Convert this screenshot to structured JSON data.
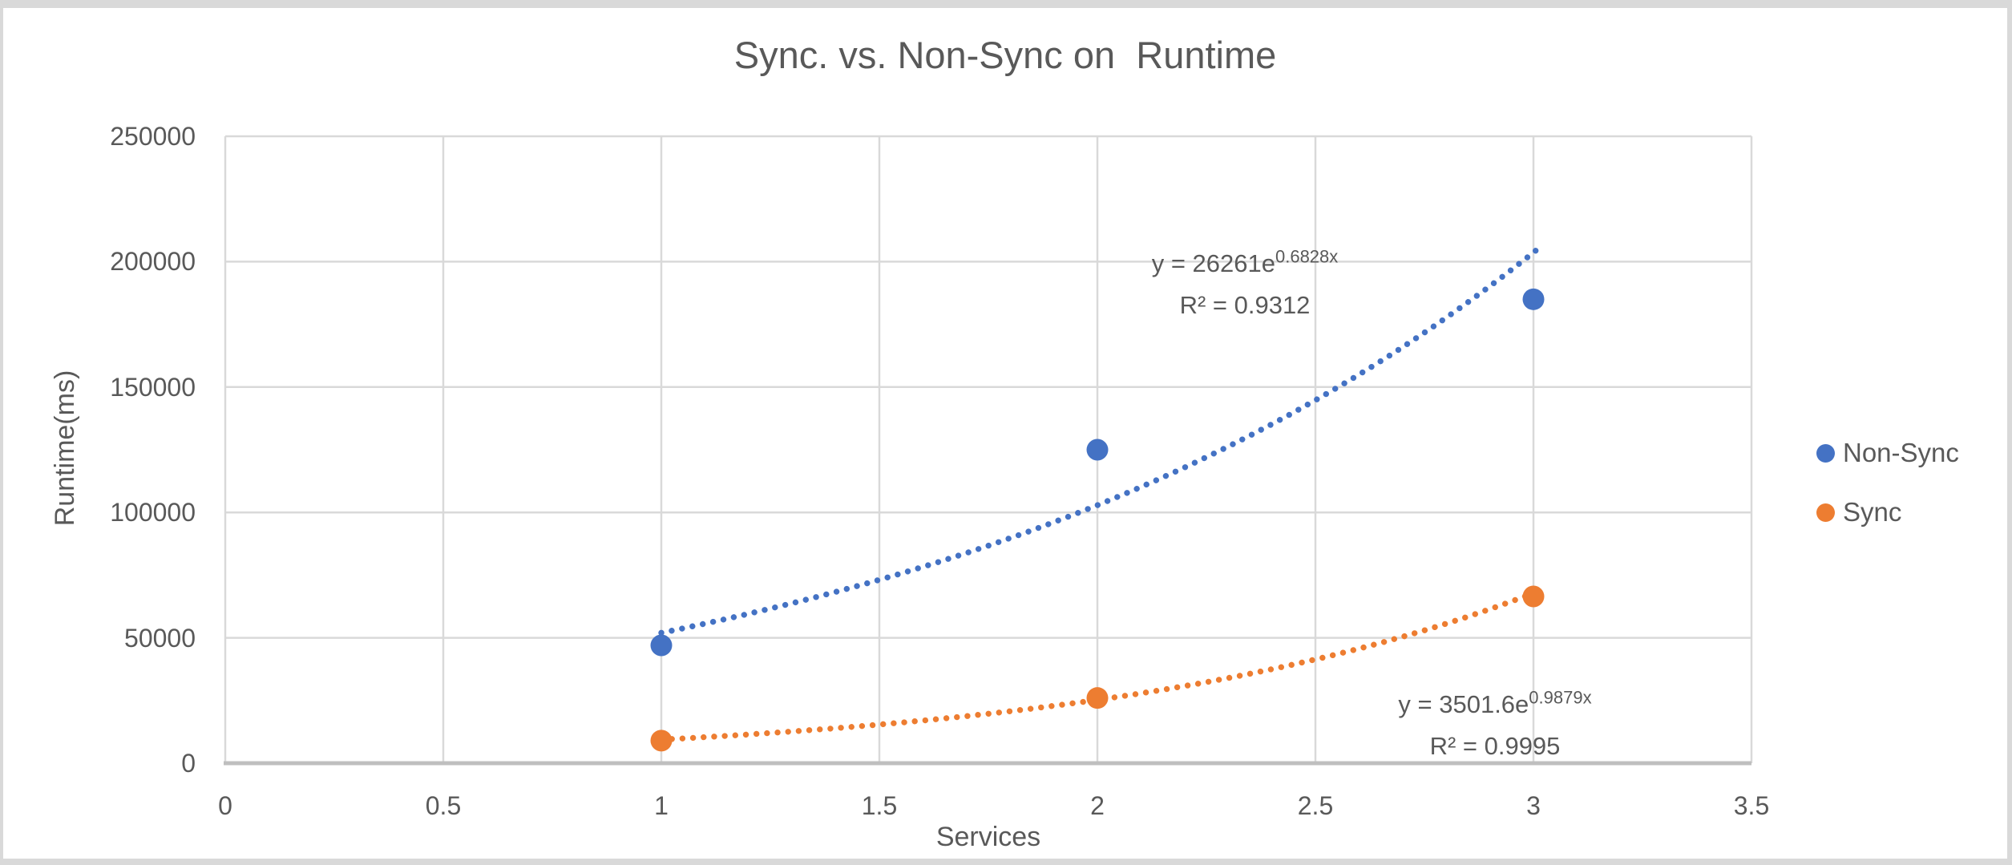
{
  "window": {
    "background": "#ffffff",
    "frame_border_color": "#d9d9d9"
  },
  "chart_data": {
    "type": "scatter",
    "title": "Sync. vs. Non-Sync on  Runtime",
    "xlabel": "Services",
    "ylabel": "Runtime(ms)",
    "xlim": [
      0,
      3.5
    ],
    "ylim": [
      0,
      250000
    ],
    "x_tick_values": [
      0,
      0.5,
      1,
      1.5,
      2,
      2.5,
      3,
      3.5
    ],
    "x_tick_labels": [
      "0",
      "0.5",
      "1",
      "1.5",
      "2",
      "2.5",
      "3",
      "3.5"
    ],
    "y_tick_values": [
      0,
      50000,
      100000,
      150000,
      200000,
      250000
    ],
    "y_tick_labels": [
      "0",
      "50000",
      "100000",
      "150000",
      "200000",
      "250000"
    ],
    "grid": true,
    "legend_position": "right",
    "series": [
      {
        "name": "Non-Sync",
        "color": "#4472C4",
        "marker": "circle",
        "x": [
          1,
          2,
          3
        ],
        "y": [
          47000,
          125000,
          185000
        ],
        "trendline": {
          "type": "exponential",
          "a": 26261,
          "b": 0.6828,
          "x_start": 1,
          "x_end": 3.01,
          "equation_base": "y = 26261e",
          "equation_exponent": "0.6828x",
          "r_squared": "R² = 0.9312"
        }
      },
      {
        "name": "Sync",
        "color": "#ED7D31",
        "marker": "circle",
        "x": [
          1,
          2,
          3
        ],
        "y": [
          9000,
          26000,
          66500
        ],
        "trendline": {
          "type": "exponential",
          "a": 3501.6,
          "b": 0.9879,
          "x_start": 1,
          "x_end": 3.02,
          "equation_base": "y = 3501.6e",
          "equation_exponent": "0.9879x",
          "r_squared": "R² = 0.9995"
        }
      }
    ],
    "colors": {
      "text": "#595959",
      "gridline": "#D9D9D9",
      "axis_line": "#BFBFBF"
    }
  }
}
